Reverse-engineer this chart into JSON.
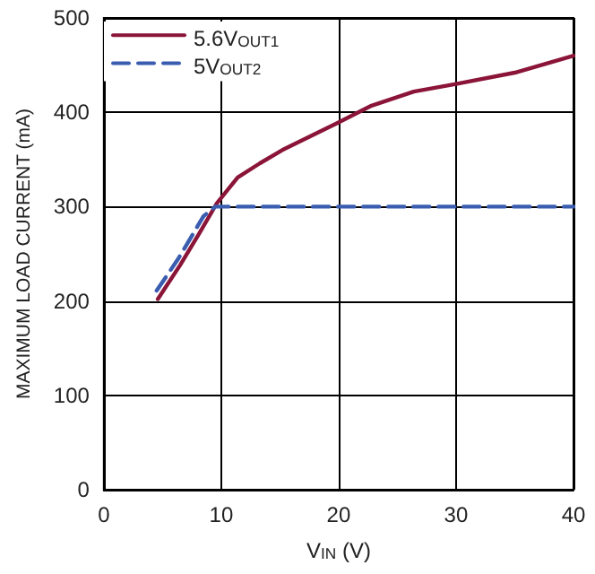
{
  "chart_data": {
    "type": "line",
    "xlabel": "V$_{IN}$ (V)",
    "ylabel": "MAXIMUM LOAD CURRENT (mA)",
    "xlim": [
      0,
      40
    ],
    "xticks": [
      0,
      10,
      20,
      30,
      40
    ],
    "ylim": [
      0,
      500
    ],
    "yticks": [
      0,
      100,
      200,
      300,
      400,
      500
    ],
    "grid": true,
    "legend": "top left",
    "marker": "none",
    "series": [
      {
        "name": "5.6V$_{OUT1}$",
        "color": "#8b1538",
        "line_style": "solid",
        "x": [
          4.6,
          6.5,
          8.1,
          9.6,
          11.4,
          13.3,
          15.2,
          17.5,
          19.8,
          22.8,
          26.4,
          30,
          35,
          40
        ],
        "values": [
          202,
          238,
          271,
          303,
          331,
          346,
          360,
          374,
          388,
          407,
          422,
          430,
          442,
          460
        ]
      },
      {
        "name": "5V$_{OUT2}$",
        "color": "#3a5db0",
        "line_style": "dashed",
        "x": [
          4.5,
          6.3,
          8.5,
          9.5,
          40
        ],
        "values": [
          211,
          244,
          290,
          300,
          300
        ]
      }
    ]
  }
}
